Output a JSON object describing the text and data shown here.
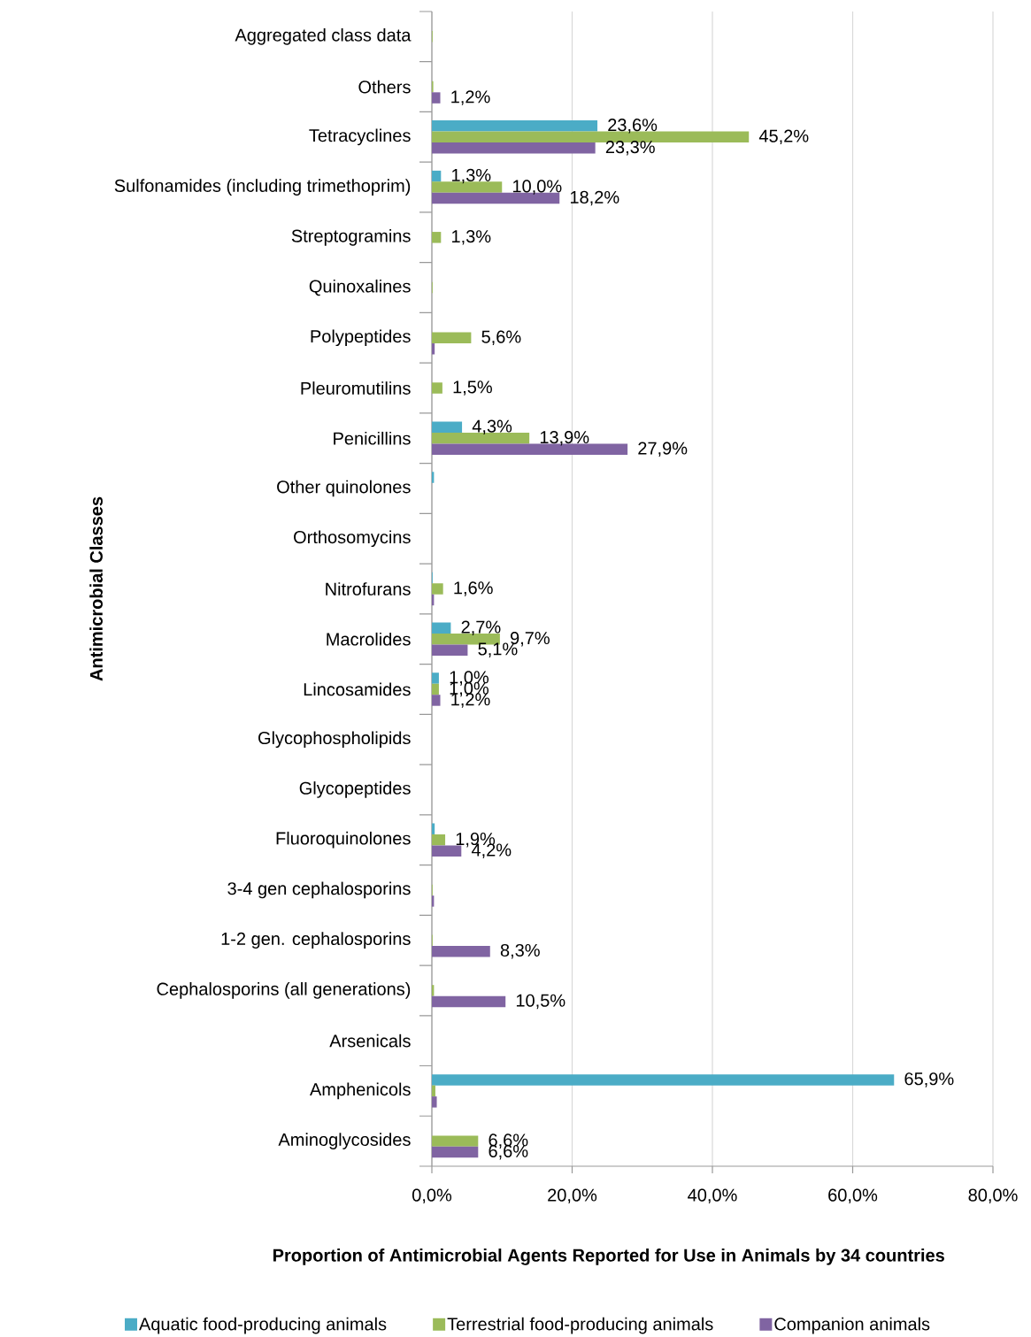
{
  "chart_data": {
    "type": "bar",
    "orientation": "horizontal",
    "xlabel": "Proportion of Antimicrobial Agents Reported for Use in Animals by 34 countries",
    "ylabel": "Antimicrobial Classes",
    "categories": [
      "Aggregated class data",
      "Others",
      "Tetracyclines",
      "Sulfonamides (including trimethoprim)",
      "Streptogramins",
      "Quinoxalines",
      "Polypeptides",
      "Pleuromutilins",
      "Penicillins",
      "Other quinolones",
      "Orthosomycins",
      "Nitrofurans",
      "Macrolides",
      "Lincosamides",
      "Glycophospholipids",
      "Glycopeptides",
      "Fluoroquinolones",
      "3-4 gen cephalosporins",
      "1-2 gen. cephalosporins",
      "Cephalosporins (all generations)",
      "Arsenicals",
      "Amphenicols",
      "Aminoglycosides"
    ],
    "series": [
      {
        "name": "Aquatic food-producing animals",
        "color": "#4bacc6",
        "values": [
          0,
          0,
          23.6,
          1.3,
          0,
          0,
          0,
          0,
          4.3,
          0.3,
          0,
          0.1,
          2.7,
          1.0,
          0,
          0,
          0.4,
          0,
          0,
          0,
          0,
          65.9,
          0
        ],
        "value_labels": [
          null,
          null,
          "23,6%",
          "1,3%",
          null,
          null,
          null,
          null,
          "4,3%",
          null,
          null,
          null,
          "2,7%",
          "1,0%",
          null,
          null,
          null,
          null,
          null,
          null,
          null,
          "65,9%",
          null
        ]
      },
      {
        "name": "Terrestrial food-producing animals",
        "color": "#9bbb59",
        "values": [
          0.1,
          0.2,
          45.2,
          10.0,
          1.3,
          0.1,
          5.6,
          1.5,
          13.9,
          0,
          0,
          1.6,
          9.7,
          1.0,
          0,
          0,
          1.9,
          0.1,
          0.1,
          0.3,
          0,
          0.5,
          6.6
        ],
        "value_labels": [
          null,
          null,
          "45,2%",
          "10,0%",
          "1,3%",
          null,
          "5,6%",
          "1,5%",
          "13,9%",
          null,
          null,
          "1,6%",
          "9,7%",
          "1,0%",
          null,
          null,
          "1,9%",
          null,
          null,
          null,
          null,
          null,
          "6,6%"
        ]
      },
      {
        "name": "Companion animals",
        "color": "#8064a2",
        "values": [
          null,
          1.2,
          23.3,
          18.2,
          0,
          0,
          0.4,
          null,
          27.9,
          0,
          0,
          0.3,
          5.1,
          1.2,
          0,
          0,
          4.2,
          0.3,
          8.3,
          10.5,
          0,
          0.7,
          6.6
        ],
        "value_labels": [
          null,
          "1,2%",
          "23,3%",
          "18,2%",
          null,
          null,
          null,
          null,
          "27,9%",
          null,
          null,
          null,
          "5,1%",
          "1,2%",
          null,
          null,
          "4,2%",
          null,
          "8,3%",
          "10,5%",
          null,
          null,
          "6,6%"
        ]
      }
    ],
    "xlim": [
      0,
      80
    ],
    "xticks": [
      {
        "value": 0,
        "label": "0,0%"
      },
      {
        "value": 20,
        "label": "20,0%"
      },
      {
        "value": 40,
        "label": "40,0%"
      },
      {
        "value": 60,
        "label": "60,0%"
      },
      {
        "value": 80,
        "label": "80,0%"
      }
    ],
    "grid": "x",
    "legend": "bottom"
  }
}
